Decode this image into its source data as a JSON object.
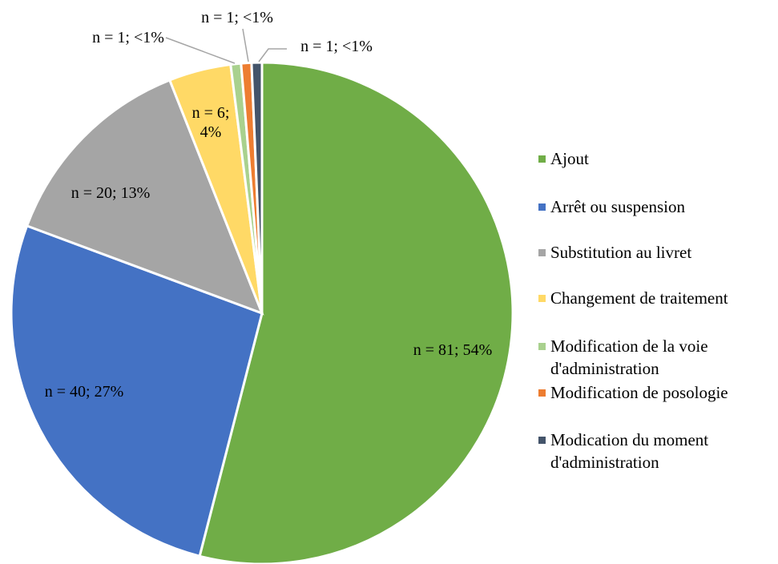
{
  "chart_data": {
    "type": "pie",
    "categories": [
      "Ajout",
      "Arrêt ou suspension",
      "Substitution au livret",
      "Changement de traitement",
      "Modification de la voie d'administration",
      "Modification de posologie",
      "Modication du moment d'administration"
    ],
    "values": [
      81,
      40,
      20,
      6,
      1,
      1,
      1
    ],
    "value_labels": [
      "n = 81; 54%",
      "n = 40; 27%",
      "n = 20; 13%",
      "n = 6; 4%",
      "n = 1; <1%",
      "n = 1; <1%",
      "n = 1; <1%"
    ],
    "colors": [
      "#70ad47",
      "#4472c4",
      "#a5a5a5",
      "#ffd966",
      "#a9d18e",
      "#ed7d31",
      "#44546a"
    ],
    "legend": "right"
  }
}
